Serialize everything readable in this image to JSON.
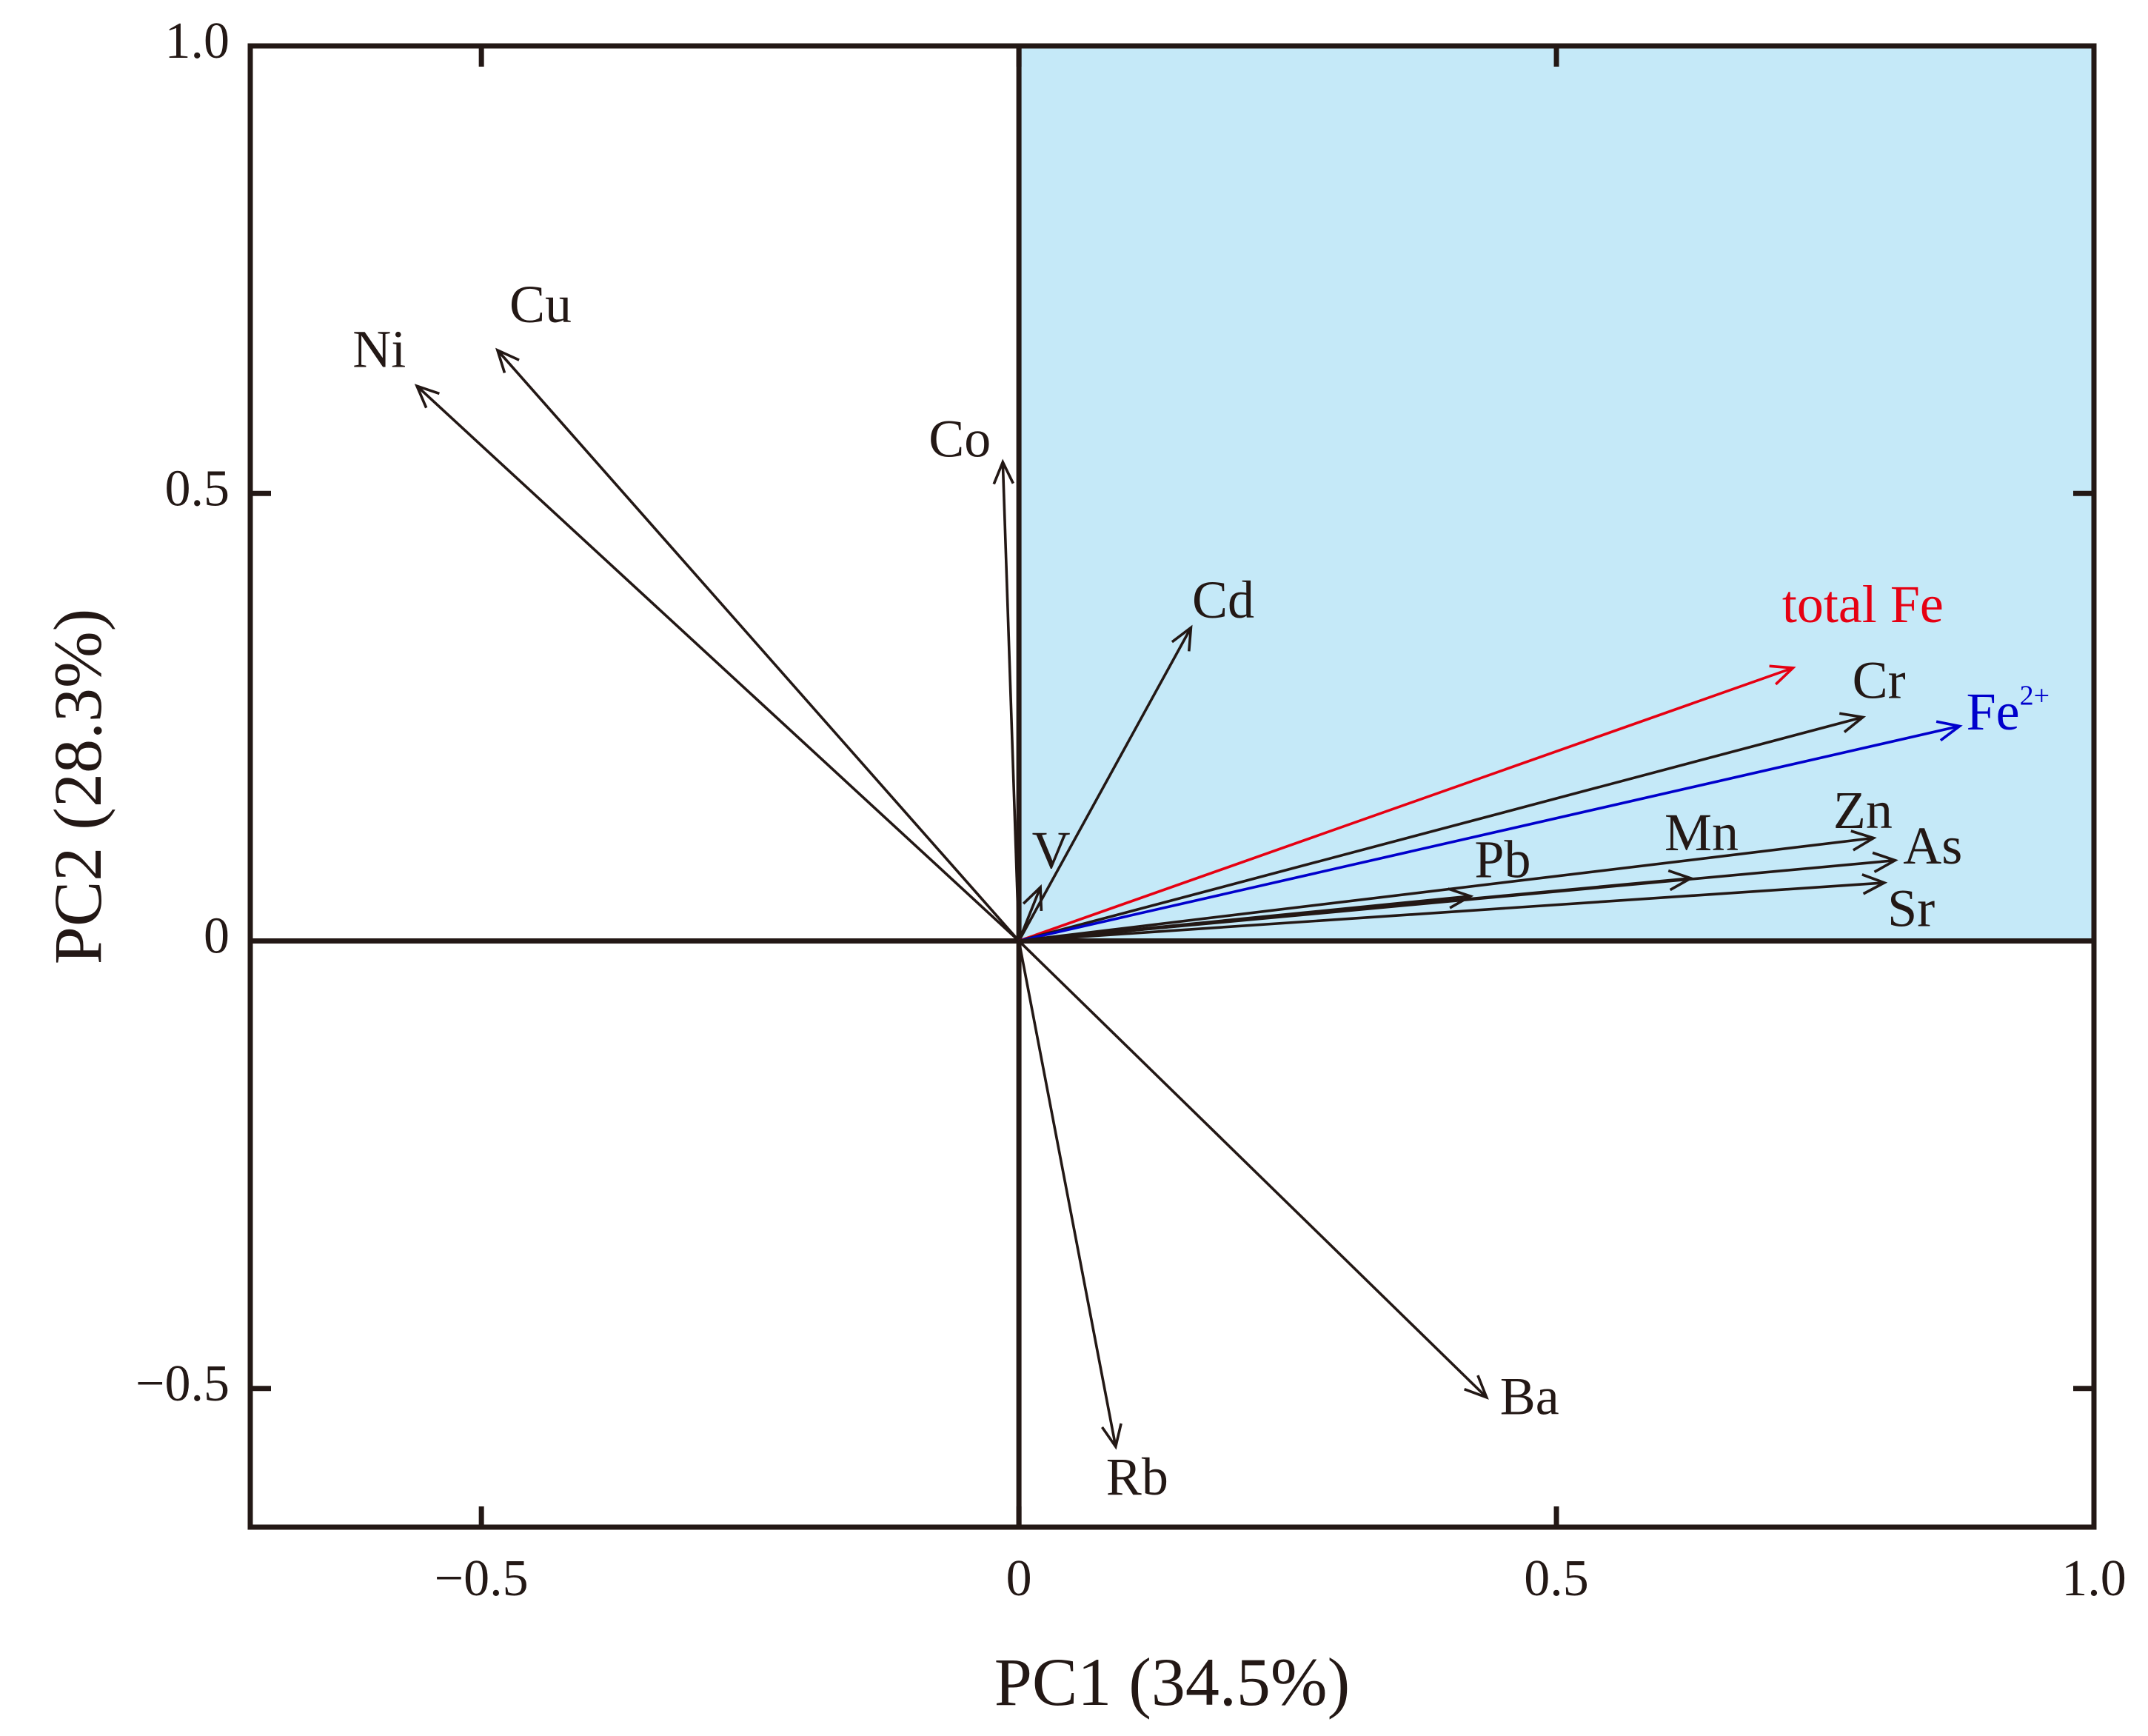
{
  "chart_data": {
    "type": "biplot",
    "title": "",
    "xlabel": "PC1 (34.5%)",
    "ylabel": "PC2 (28.3%)",
    "xlim": [
      -0.715,
      1.0
    ],
    "ylim": [
      -0.655,
      1.0
    ],
    "xticks": [
      {
        "value": -0.5,
        "label": "−0.5"
      },
      {
        "value": 0,
        "label": "0"
      },
      {
        "value": 0.5,
        "label": "0.5"
      },
      {
        "value": 1.0,
        "label": "1.0"
      }
    ],
    "yticks": [
      {
        "value": 1.0,
        "label": "1.0"
      },
      {
        "value": 0.5,
        "label": "0.5"
      },
      {
        "value": 0,
        "label": "0"
      },
      {
        "value": -0.5,
        "label": "−0.5"
      }
    ],
    "highlight_quadrant": {
      "x": [
        0,
        1.0
      ],
      "y": [
        0,
        1.0
      ],
      "color": "#c5e9f8"
    },
    "vectors": [
      {
        "label": "Ni",
        "x": -0.56,
        "y": 0.62,
        "color": "#231815",
        "lx": -0.595,
        "ly": 0.655
      },
      {
        "label": "Cu",
        "x": -0.485,
        "y": 0.66,
        "color": "#231815",
        "lx": -0.445,
        "ly": 0.705
      },
      {
        "label": "Co",
        "x": -0.015,
        "y": 0.535,
        "color": "#231815",
        "lx": -0.055,
        "ly": 0.555
      },
      {
        "label": "Cd",
        "x": 0.16,
        "y": 0.35,
        "color": "#231815",
        "lx": 0.19,
        "ly": 0.375
      },
      {
        "label": "V",
        "x": 0.02,
        "y": 0.06,
        "color": "#231815",
        "lx": 0.03,
        "ly": 0.095
      },
      {
        "label": "total Fe",
        "x": 0.72,
        "y": 0.305,
        "color": "#e60012",
        "lx": 0.785,
        "ly": 0.37
      },
      {
        "label": "Cr",
        "x": 0.785,
        "y": 0.25,
        "color": "#231815",
        "lx": 0.8,
        "ly": 0.285
      },
      {
        "label": "Fe",
        "sup": "2+",
        "x": 0.875,
        "y": 0.24,
        "color": "#0000cc",
        "lx": 0.92,
        "ly": 0.25
      },
      {
        "label": "Zn",
        "x": 0.795,
        "y": 0.115,
        "color": "#231815",
        "lx": 0.785,
        "ly": 0.14
      },
      {
        "label": "Mn",
        "x": 0.625,
        "y": 0.07,
        "color": "#231815",
        "lx": 0.635,
        "ly": 0.115
      },
      {
        "label": "As",
        "x": 0.815,
        "y": 0.09,
        "color": "#231815",
        "lx": 0.85,
        "ly": 0.1
      },
      {
        "label": "Pb",
        "x": 0.42,
        "y": 0.05,
        "color": "#231815",
        "lx": 0.45,
        "ly": 0.085
      },
      {
        "label": "Sr",
        "x": 0.805,
        "y": 0.065,
        "color": "#231815",
        "lx": 0.83,
        "ly": 0.03
      },
      {
        "label": "Ba",
        "x": 0.435,
        "y": -0.51,
        "color": "#231815",
        "lx": 0.475,
        "ly": -0.515
      },
      {
        "label": "Rb",
        "x": 0.09,
        "y": -0.565,
        "color": "#231815",
        "lx": 0.11,
        "ly": -0.605
      }
    ]
  }
}
